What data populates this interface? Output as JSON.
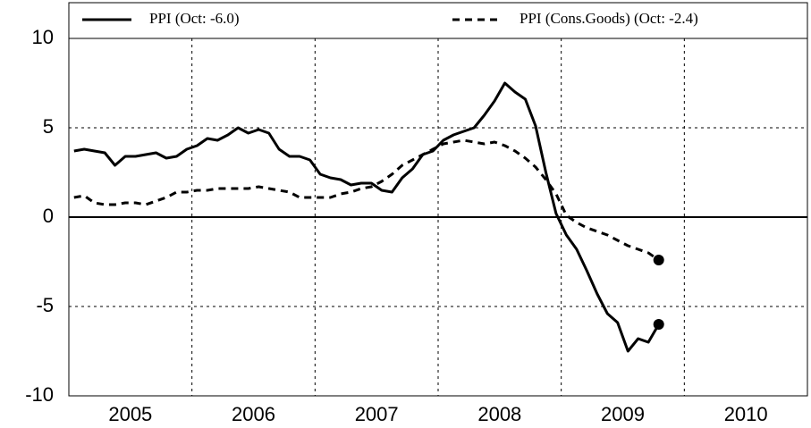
{
  "chart_data": {
    "type": "line",
    "x": [
      2005.042,
      2005.125,
      2005.208,
      2005.292,
      2005.375,
      2005.458,
      2005.542,
      2005.625,
      2005.708,
      2005.792,
      2005.875,
      2005.958,
      2006.042,
      2006.125,
      2006.208,
      2006.292,
      2006.375,
      2006.458,
      2006.542,
      2006.625,
      2006.708,
      2006.792,
      2006.875,
      2006.958,
      2007.042,
      2007.125,
      2007.208,
      2007.292,
      2007.375,
      2007.458,
      2007.542,
      2007.625,
      2007.708,
      2007.792,
      2007.875,
      2007.958,
      2008.042,
      2008.125,
      2008.208,
      2008.292,
      2008.375,
      2008.458,
      2008.542,
      2008.625,
      2008.708,
      2008.792,
      2008.875,
      2008.958,
      2009.042,
      2009.125,
      2009.208,
      2009.292,
      2009.375,
      2009.458,
      2009.542,
      2009.625,
      2009.708,
      2009.792
    ],
    "series": [
      {
        "name": "PPI (Oct: -6.0)",
        "color": "#000000",
        "dash": false,
        "values": [
          3.7,
          3.8,
          3.7,
          3.6,
          2.9,
          3.4,
          3.4,
          3.5,
          3.6,
          3.3,
          3.4,
          3.8,
          4.0,
          4.4,
          4.3,
          4.6,
          5.0,
          4.7,
          4.9,
          4.7,
          3.8,
          3.4,
          3.4,
          3.2,
          2.4,
          2.2,
          2.1,
          1.8,
          1.9,
          1.9,
          1.5,
          1.4,
          2.2,
          2.7,
          3.5,
          3.7,
          4.3,
          4.6,
          4.8,
          5.0,
          5.7,
          6.5,
          7.5,
          7.0,
          6.6,
          5.1,
          2.5,
          0.2,
          -1.0,
          -1.8,
          -3.0,
          -4.3,
          -5.4,
          -5.9,
          -7.5,
          -6.8,
          -7.0,
          -6.0
        ]
      },
      {
        "name": "PPI (Cons.Goods) (Oct: -2.4)",
        "color": "#000000",
        "dash": true,
        "values": [
          1.1,
          1.2,
          0.8,
          0.7,
          0.7,
          0.8,
          0.8,
          0.7,
          0.9,
          1.1,
          1.4,
          1.4,
          1.5,
          1.5,
          1.6,
          1.6,
          1.6,
          1.6,
          1.7,
          1.6,
          1.5,
          1.4,
          1.1,
          1.1,
          1.1,
          1.1,
          1.3,
          1.4,
          1.6,
          1.7,
          2.0,
          2.4,
          2.9,
          3.2,
          3.5,
          3.8,
          4.1,
          4.2,
          4.3,
          4.2,
          4.1,
          4.2,
          4.0,
          3.7,
          3.3,
          2.8,
          2.1,
          1.3,
          0.1,
          -0.3,
          -0.6,
          -0.8,
          -1.0,
          -1.3,
          -1.6,
          -1.8,
          -2.0,
          -2.4
        ]
      }
    ],
    "xlim": [
      2005,
      2011
    ],
    "xgrid": [
      2006,
      2007,
      2008,
      2009,
      2010
    ],
    "xticks": [
      {
        "value": 2005.5,
        "label": "2005"
      },
      {
        "value": 2006.5,
        "label": "2006"
      },
      {
        "value": 2007.5,
        "label": "2007"
      },
      {
        "value": 2008.5,
        "label": "2008"
      },
      {
        "value": 2009.5,
        "label": "2009"
      },
      {
        "value": 2010.5,
        "label": "2010"
      }
    ],
    "ylim": [
      -10,
      10
    ],
    "yticks": [
      -10,
      -5,
      0,
      5,
      10
    ],
    "grid": true,
    "legend": "top"
  }
}
